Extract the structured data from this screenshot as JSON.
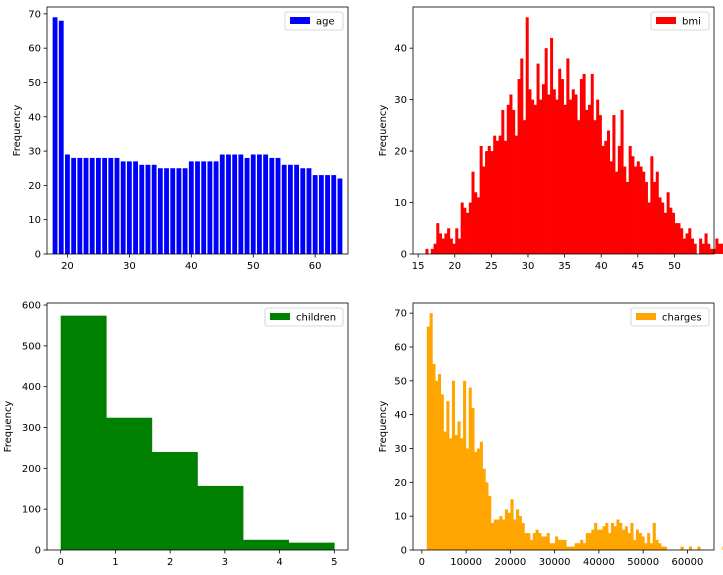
{
  "chart_data": [
    {
      "type": "bar",
      "ylabel": "Frequency",
      "legend": {
        "label": "age",
        "placement": "top-right"
      },
      "color": "#0000ff",
      "grid": false,
      "xlim": [
        16.7,
        65.3
      ],
      "ylim": [
        0,
        72
      ],
      "xticks": [
        20,
        30,
        40,
        50,
        60
      ],
      "yticks": [
        0,
        10,
        20,
        30,
        40,
        50,
        60,
        70
      ],
      "bar_width": 0.78,
      "bars": [
        {
          "x": 18,
          "value": 69
        },
        {
          "x": 19,
          "value": 68
        },
        {
          "x": 20,
          "value": 29
        },
        {
          "x": 21,
          "value": 28
        },
        {
          "x": 22,
          "value": 28
        },
        {
          "x": 23,
          "value": 28
        },
        {
          "x": 24,
          "value": 28
        },
        {
          "x": 25,
          "value": 28
        },
        {
          "x": 26,
          "value": 28
        },
        {
          "x": 27,
          "value": 28
        },
        {
          "x": 28,
          "value": 28
        },
        {
          "x": 29,
          "value": 27
        },
        {
          "x": 30,
          "value": 27
        },
        {
          "x": 31,
          "value": 27
        },
        {
          "x": 32,
          "value": 26
        },
        {
          "x": 33,
          "value": 26
        },
        {
          "x": 34,
          "value": 26
        },
        {
          "x": 35,
          "value": 25
        },
        {
          "x": 36,
          "value": 25
        },
        {
          "x": 37,
          "value": 25
        },
        {
          "x": 38,
          "value": 25
        },
        {
          "x": 39,
          "value": 25
        },
        {
          "x": 40,
          "value": 27
        },
        {
          "x": 41,
          "value": 27
        },
        {
          "x": 42,
          "value": 27
        },
        {
          "x": 43,
          "value": 27
        },
        {
          "x": 44,
          "value": 27
        },
        {
          "x": 45,
          "value": 29
        },
        {
          "x": 46,
          "value": 29
        },
        {
          "x": 47,
          "value": 29
        },
        {
          "x": 48,
          "value": 29
        },
        {
          "x": 49,
          "value": 28
        },
        {
          "x": 50,
          "value": 29
        },
        {
          "x": 51,
          "value": 29
        },
        {
          "x": 52,
          "value": 29
        },
        {
          "x": 53,
          "value": 28
        },
        {
          "x": 54,
          "value": 28
        },
        {
          "x": 55,
          "value": 26
        },
        {
          "x": 56,
          "value": 26
        },
        {
          "x": 57,
          "value": 26
        },
        {
          "x": 58,
          "value": 25
        },
        {
          "x": 59,
          "value": 25
        },
        {
          "x": 60,
          "value": 23
        },
        {
          "x": 61,
          "value": 23
        },
        {
          "x": 62,
          "value": 23
        },
        {
          "x": 63,
          "value": 23
        },
        {
          "x": 64,
          "value": 22
        }
      ]
    },
    {
      "type": "histogram",
      "ylabel": "Frequency",
      "legend": {
        "label": "bmi",
        "placement": "top-right"
      },
      "color": "#ff0000",
      "grid": false,
      "xlim": [
        14.3,
        55.4
      ],
      "ylim": [
        0,
        48
      ],
      "xticks": [
        15,
        20,
        25,
        30,
        35,
        40,
        45,
        50
      ],
      "yticks": [
        0,
        10,
        20,
        30,
        40
      ],
      "bin_start": 16.0,
      "bin_width": 0.37,
      "values": [
        1,
        0,
        1,
        2,
        6,
        4,
        3,
        4,
        5,
        3,
        2,
        5,
        3,
        10,
        9,
        8,
        10,
        16,
        12,
        11,
        21,
        17,
        20,
        21,
        20,
        23,
        22,
        23,
        28,
        22,
        29,
        31,
        28,
        23,
        34,
        38,
        26,
        46,
        32,
        30,
        29,
        37,
        30,
        33,
        40,
        31,
        42,
        32,
        30,
        36,
        34,
        29,
        38,
        30,
        32,
        31,
        26,
        34,
        35,
        28,
        29,
        35,
        26,
        30,
        27,
        21,
        22,
        24,
        18,
        27,
        16,
        21,
        28,
        17,
        14,
        21,
        19,
        17,
        18,
        17,
        16,
        14,
        10,
        19,
        14,
        16,
        11,
        10,
        8,
        12,
        9,
        8,
        6,
        6,
        5,
        3,
        4,
        5,
        3,
        2,
        0,
        3,
        2,
        4,
        2,
        1,
        1,
        3,
        2,
        2,
        1,
        2,
        1,
        0,
        1,
        4,
        0,
        0,
        0,
        0,
        0,
        0,
        0,
        0,
        0,
        0,
        0,
        0,
        0,
        0,
        1,
        1
      ]
    },
    {
      "type": "histogram",
      "ylabel": "Frequency",
      "legend": {
        "label": "children",
        "placement": "top-right"
      },
      "color": "#008000",
      "grid": false,
      "xlim": [
        -0.25,
        5.25
      ],
      "ylim": [
        0,
        605
      ],
      "xticks": [
        0,
        1,
        2,
        3,
        4,
        5
      ],
      "yticks": [
        0,
        100,
        200,
        300,
        400,
        500,
        600
      ],
      "bin_start": 0,
      "bin_width": 0.8333,
      "values": [
        574,
        324,
        240,
        157,
        25,
        18
      ]
    },
    {
      "type": "histogram",
      "ylabel": "Frequency",
      "legend": {
        "label": "charges",
        "placement": "top-right"
      },
      "color": "#ffa500",
      "grid": false,
      "xlim": [
        -2000,
        66000
      ],
      "ylim": [
        0,
        73
      ],
      "xticks": [
        0,
        10000,
        20000,
        30000,
        40000,
        50000,
        60000
      ],
      "yticks": [
        0,
        10,
        20,
        30,
        40,
        50,
        60,
        70
      ],
      "bin_start": 1122,
      "bin_width": 630,
      "values": [
        66,
        70,
        55,
        50,
        52,
        46,
        35,
        44,
        33,
        50,
        34,
        38,
        33,
        50,
        30,
        48,
        42,
        29,
        30,
        32,
        24,
        20,
        16,
        8,
        9,
        9,
        10,
        9,
        12,
        11,
        15,
        9,
        12,
        10,
        8,
        5,
        5,
        3,
        5,
        6,
        5,
        4,
        4,
        5,
        2,
        2,
        4,
        3,
        3,
        3,
        1,
        1,
        1,
        2,
        2,
        3,
        2,
        5,
        5,
        6,
        8,
        6,
        6,
        7,
        8,
        5,
        8,
        7,
        9,
        8,
        6,
        7,
        5,
        8,
        3,
        6,
        5,
        4,
        2,
        5,
        2,
        8,
        3,
        2,
        1,
        1,
        0,
        0,
        0,
        0,
        0,
        1,
        0,
        0,
        1,
        0,
        0,
        1,
        0,
        0,
        0,
        0,
        0,
        0,
        0,
        0,
        1,
        0,
        0,
        0,
        0,
        0,
        1,
        0,
        0,
        0,
        0,
        0,
        0,
        0,
        1,
        1
      ]
    }
  ]
}
